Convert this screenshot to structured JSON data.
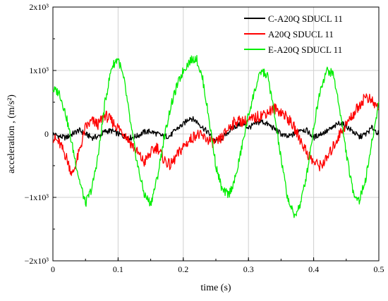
{
  "chart_data": {
    "type": "line",
    "xlabel": "time (s)",
    "ylabel": "acceleration , (m/s²)",
    "xlim": [
      0,
      0.5
    ],
    "ylim": [
      -2000,
      2000
    ],
    "x_ticks": [
      {
        "value": 0,
        "label": "0"
      },
      {
        "value": 0.1,
        "label": "0.1"
      },
      {
        "value": 0.2,
        "label": "0.2"
      },
      {
        "value": 0.3,
        "label": "0.3"
      },
      {
        "value": 0.4,
        "label": "0.4"
      },
      {
        "value": 0.5,
        "label": "0.5"
      }
    ],
    "y_ticks": [
      {
        "value": 2000,
        "label": "2x10³"
      },
      {
        "value": 1000,
        "label": "1x10³"
      },
      {
        "value": 0,
        "label": "0"
      },
      {
        "value": -1000,
        "label": "−1x10³"
      },
      {
        "value": -2000,
        "label": "−2x10³"
      }
    ],
    "grid": true,
    "legend_position": "top-right",
    "series": [
      {
        "name": "C-A20Q SDUCL 11",
        "color": "#000000",
        "x": [
          0,
          0.01,
          0.02,
          0.03,
          0.04,
          0.05,
          0.06,
          0.07,
          0.08,
          0.09,
          0.1,
          0.11,
          0.12,
          0.13,
          0.14,
          0.15,
          0.16,
          0.17,
          0.18,
          0.19,
          0.2,
          0.21,
          0.22,
          0.23,
          0.24,
          0.25,
          0.26,
          0.27,
          0.28,
          0.29,
          0.3,
          0.31,
          0.32,
          0.33,
          0.34,
          0.35,
          0.36,
          0.37,
          0.38,
          0.39,
          0.4,
          0.41,
          0.42,
          0.43,
          0.44,
          0.45,
          0.46,
          0.47,
          0.48,
          0.49,
          0.5
        ],
        "values": [
          0,
          -40,
          -60,
          0,
          60,
          0,
          -60,
          -40,
          40,
          50,
          0,
          -40,
          -60,
          -30,
          30,
          40,
          0,
          -40,
          -30,
          80,
          150,
          260,
          200,
          100,
          0,
          -120,
          -60,
          40,
          120,
          160,
          100,
          150,
          200,
          150,
          80,
          0,
          -50,
          0,
          80,
          50,
          -60,
          0,
          40,
          100,
          180,
          120,
          40,
          -50,
          0,
          100,
          0
        ]
      },
      {
        "name": "A20Q SDUCL 11",
        "color": "#ff0000",
        "x": [
          0,
          0.01,
          0.02,
          0.03,
          0.04,
          0.05,
          0.06,
          0.07,
          0.08,
          0.09,
          0.1,
          0.11,
          0.12,
          0.13,
          0.14,
          0.15,
          0.16,
          0.17,
          0.18,
          0.19,
          0.2,
          0.21,
          0.22,
          0.23,
          0.24,
          0.25,
          0.26,
          0.27,
          0.28,
          0.29,
          0.3,
          0.31,
          0.32,
          0.33,
          0.34,
          0.35,
          0.36,
          0.37,
          0.38,
          0.39,
          0.4,
          0.41,
          0.42,
          0.43,
          0.44,
          0.45,
          0.46,
          0.47,
          0.48,
          0.49,
          0.5
        ],
        "values": [
          -50,
          -150,
          -350,
          -650,
          -300,
          100,
          200,
          150,
          300,
          200,
          100,
          0,
          -150,
          -300,
          -450,
          -300,
          -200,
          -400,
          -500,
          -350,
          -200,
          -100,
          0,
          -50,
          -100,
          -150,
          -50,
          100,
          200,
          200,
          200,
          250,
          300,
          350,
          400,
          350,
          250,
          100,
          -100,
          -300,
          -450,
          -500,
          -400,
          -200,
          0,
          150,
          300,
          450,
          600,
          500,
          400
        ]
      },
      {
        "name": "E-A20Q SDUCL 11",
        "color": "#00ee00",
        "x": [
          0,
          0.01,
          0.02,
          0.03,
          0.04,
          0.05,
          0.06,
          0.07,
          0.08,
          0.09,
          0.1,
          0.11,
          0.12,
          0.13,
          0.14,
          0.15,
          0.16,
          0.17,
          0.18,
          0.19,
          0.2,
          0.21,
          0.22,
          0.23,
          0.24,
          0.25,
          0.26,
          0.27,
          0.28,
          0.29,
          0.3,
          0.31,
          0.32,
          0.33,
          0.34,
          0.35,
          0.36,
          0.37,
          0.38,
          0.39,
          0.4,
          0.41,
          0.42,
          0.43,
          0.44,
          0.45,
          0.46,
          0.47,
          0.48,
          0.49,
          0.5
        ],
        "values": [
          700,
          650,
          300,
          -200,
          -700,
          -1100,
          -850,
          -300,
          500,
          1050,
          1200,
          800,
          100,
          -500,
          -950,
          -1100,
          -700,
          -100,
          400,
          750,
          1000,
          1150,
          1200,
          850,
          200,
          -500,
          -900,
          -950,
          -700,
          -200,
          300,
          700,
          1000,
          900,
          300,
          -400,
          -1000,
          -1300,
          -1100,
          -600,
          100,
          700,
          1000,
          950,
          400,
          -300,
          -900,
          -1050,
          -700,
          -100,
          500
        ]
      }
    ]
  }
}
